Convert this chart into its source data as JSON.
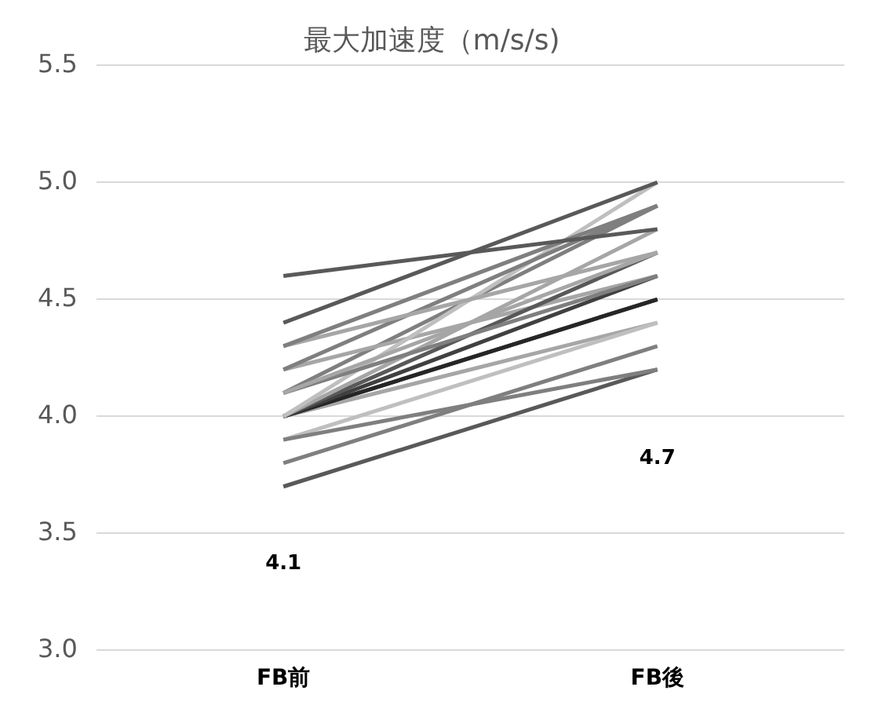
{
  "chart_data": {
    "type": "line",
    "title": "最大加速度（m/s/s)",
    "categories": [
      "FB前",
      "FB後"
    ],
    "series": [
      {
        "color": "#595959",
        "values": [
          4.6,
          4.8
        ]
      },
      {
        "color": "#595959",
        "values": [
          4.4,
          5.0
        ]
      },
      {
        "color": "#7f7f7f",
        "values": [
          4.3,
          4.9
        ]
      },
      {
        "color": "#a6a6a6",
        "values": [
          4.3,
          4.7
        ]
      },
      {
        "color": "#7f7f7f",
        "values": [
          4.2,
          4.9
        ]
      },
      {
        "color": "#a6a6a6",
        "values": [
          4.1,
          4.7
        ]
      },
      {
        "color": "#7f7f7f",
        "values": [
          4.1,
          4.6
        ]
      },
      {
        "color": "#bfbfbf",
        "values": [
          4.0,
          5.0
        ]
      },
      {
        "color": "#a6a6a6",
        "values": [
          4.0,
          4.8
        ]
      },
      {
        "color": "#595959",
        "values": [
          4.0,
          4.7
        ]
      },
      {
        "color": "#404040",
        "values": [
          4.0,
          4.6
        ]
      },
      {
        "color": "#262626",
        "values": [
          4.0,
          4.5
        ]
      },
      {
        "color": "#404040",
        "values": [
          4.0,
          4.5
        ]
      },
      {
        "color": "#7f7f7f",
        "values": [
          3.9,
          4.2
        ]
      },
      {
        "color": "#bfbfbf",
        "values": [
          3.9,
          4.4
        ]
      },
      {
        "color": "#7f7f7f",
        "values": [
          3.8,
          4.3
        ]
      },
      {
        "color": "#595959",
        "values": [
          3.7,
          4.2
        ]
      },
      {
        "color": "#a6a6a6",
        "values": [
          4.2,
          4.6
        ]
      },
      {
        "color": "#7f7f7f",
        "values": [
          4.1,
          4.9
        ]
      },
      {
        "color": "#a6a6a6",
        "values": [
          4.0,
          4.4
        ]
      }
    ],
    "ylim": [
      3,
      5.5
    ],
    "yticks": [
      {
        "value": 3,
        "label": "3.0"
      },
      {
        "value": 3.5,
        "label": "3.5"
      },
      {
        "value": 4,
        "label": "4.0"
      },
      {
        "value": 4.5,
        "label": "4.5"
      },
      {
        "value": 5,
        "label": "5.0"
      },
      {
        "value": 5.5,
        "label": "5.5"
      }
    ],
    "grid": "y",
    "legend": false,
    "marker": "none",
    "line_style": "solid",
    "annotations": [
      "4.1",
      "4.7"
    ]
  }
}
